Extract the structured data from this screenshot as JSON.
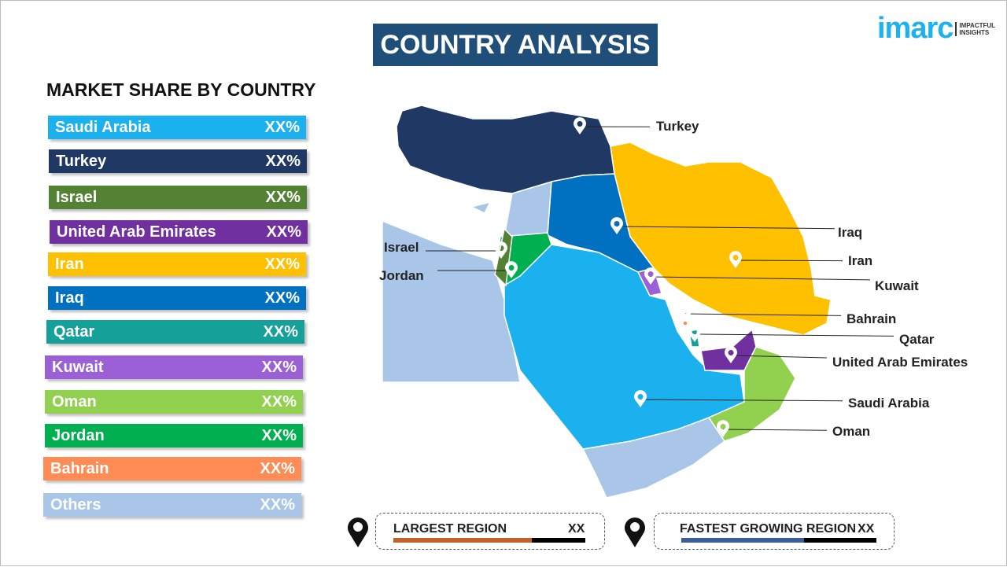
{
  "header": {
    "title": "COUNTRY ANALYSIS",
    "logo_text": "imarc",
    "logo_tagline": "IMPACTFUL INSIGHTS"
  },
  "market_share": {
    "title": "MARKET SHARE BY COUNTRY",
    "items": [
      {
        "name": "Saudi Arabia",
        "value": "XX%",
        "color": "#1bb1ee"
      },
      {
        "name": "Turkey",
        "value": "XX%",
        "color": "#1f3864"
      },
      {
        "name": "Israel",
        "value": "XX%",
        "color": "#548235"
      },
      {
        "name": "United Arab Emirates",
        "value": "XX%",
        "color": "#7030a0"
      },
      {
        "name": "Iran",
        "value": "XX%",
        "color": "#ffc000"
      },
      {
        "name": "Iraq",
        "value": "XX%",
        "color": "#0070c0"
      },
      {
        "name": "Qatar",
        "value": "XX%",
        "color": "#16a09a"
      },
      {
        "name": "Kuwait",
        "value": "XX%",
        "color": "#9b5fd6"
      },
      {
        "name": "Oman",
        "value": "XX%",
        "color": "#92d050"
      },
      {
        "name": "Jordan",
        "value": "XX%",
        "color": "#00b050"
      },
      {
        "name": "Bahrain",
        "value": "XX%",
        "color": "#ff8b55"
      },
      {
        "name": "Others",
        "value": "XX%",
        "color": "#a9c6e8"
      }
    ]
  },
  "map_labels": [
    "Turkey",
    "Iraq",
    "Iran",
    "Kuwait",
    "Bahrain",
    "Qatar",
    "United Arab Emirates",
    "Saudi Arabia",
    "Oman",
    "Israel",
    "Jordan"
  ],
  "largest_region": {
    "label": "LARGEST REGION",
    "value": "XX",
    "fill_percent": 72,
    "color": "#c0622a"
  },
  "fastest_region": {
    "label": "FASTEST GROWING REGION",
    "value": "XX",
    "fill_percent": 63,
    "color": "#3a5e9a"
  }
}
